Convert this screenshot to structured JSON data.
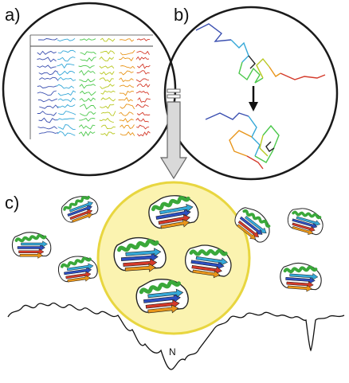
{
  "panels": {
    "a": "a)",
    "b": "b)",
    "c": "c)"
  },
  "landscape": {
    "minimum_label": "N"
  },
  "colors": {
    "circle_stroke": "#1a1a1a",
    "yellow_fill": "#fbf3b0",
    "yellow_stroke": "#e8d640",
    "arrow_fill": "#d9d9d9",
    "chain": [
      "#3a4fb0",
      "#35a8d8",
      "#4cc84c",
      "#b8c820",
      "#e8951a",
      "#d43a2a"
    ]
  },
  "icons": [
    "down-arrow-icon",
    "gray-block-arrow-icon"
  ]
}
